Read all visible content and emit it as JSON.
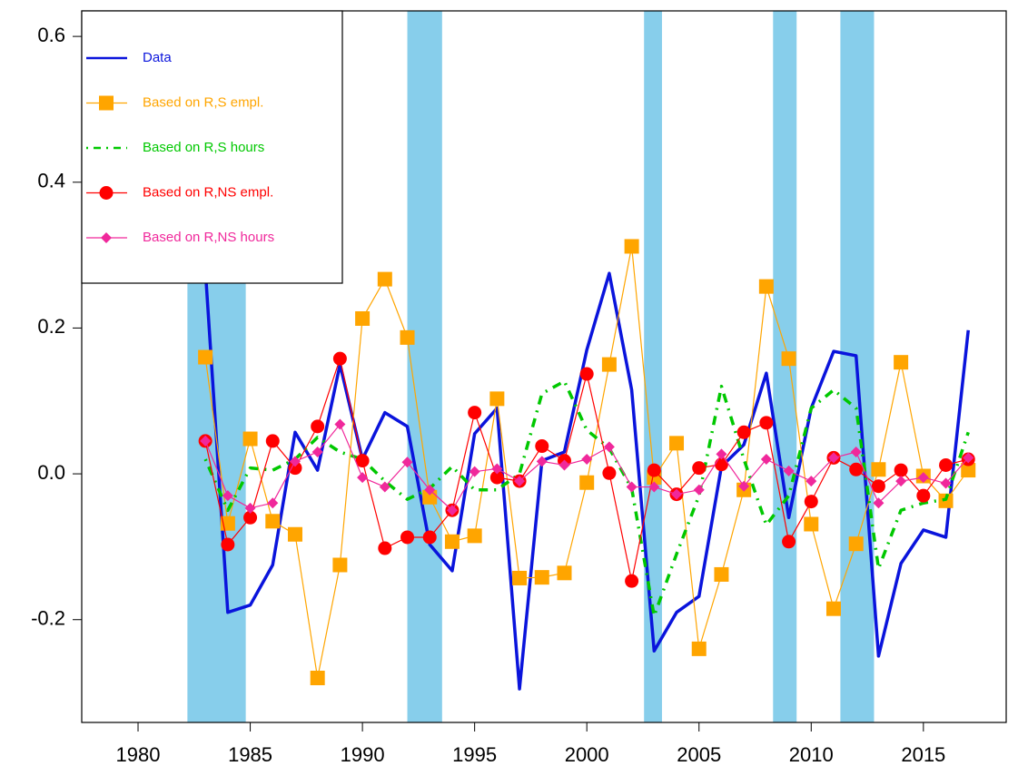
{
  "chart_data": {
    "type": "line",
    "x": [
      1983,
      1984,
      1985,
      1986,
      1987,
      1988,
      1989,
      1990,
      1991,
      1992,
      1993,
      1994,
      1995,
      1996,
      1997,
      1998,
      1999,
      2000,
      2001,
      2002,
      2003,
      2004,
      2005,
      2006,
      2007,
      2008,
      2009,
      2010,
      2011,
      2012,
      2013,
      2014,
      2015,
      2016,
      2017
    ],
    "series": [
      {
        "name": "Data",
        "color": "#0a14dc",
        "width": 3.5,
        "dash": "solid",
        "marker": "none",
        "values": [
          0.28,
          -0.19,
          -0.18,
          -0.125,
          0.057,
          0.005,
          0.15,
          0.02,
          0.084,
          0.065,
          -0.097,
          -0.133,
          0.055,
          0.09,
          -0.295,
          0.018,
          0.03,
          0.17,
          0.275,
          0.115,
          -0.243,
          -0.19,
          -0.168,
          0.01,
          0.04,
          0.138,
          -0.06,
          0.09,
          0.168,
          0.162,
          -0.25,
          -0.123,
          -0.077,
          -0.087,
          0.197
        ]
      },
      {
        "name": "Based on R,S empl.",
        "color": "#ffa500",
        "width": 1.2,
        "dash": "solid",
        "marker": "square",
        "values": [
          0.16,
          -0.068,
          0.048,
          -0.065,
          -0.083,
          -0.28,
          -0.125,
          0.213,
          0.267,
          0.187,
          -0.032,
          -0.093,
          -0.085,
          0.103,
          -0.143,
          -0.142,
          -0.136,
          -0.012,
          0.15,
          0.312,
          -0.005,
          0.042,
          -0.24,
          -0.138,
          -0.022,
          0.257,
          0.158,
          -0.069,
          -0.185,
          -0.096,
          0.006,
          0.153,
          -0.003,
          -0.037,
          0.005
        ]
      },
      {
        "name": "Based on R,S hours",
        "color": "#00c800",
        "width": 3.5,
        "dash": "dot-dash",
        "marker": "none",
        "values": [
          0.02,
          -0.05,
          0.008,
          0.005,
          0.02,
          0.05,
          0.03,
          0.02,
          -0.01,
          -0.035,
          -0.02,
          0.01,
          -0.022,
          -0.022,
          0.0,
          0.11,
          0.127,
          0.06,
          0.035,
          -0.02,
          -0.195,
          -0.11,
          -0.03,
          0.12,
          0.02,
          -0.07,
          -0.03,
          0.09,
          0.115,
          0.09,
          -0.13,
          -0.05,
          -0.04,
          -0.035,
          0.057
        ]
      },
      {
        "name": "Based on R,NS empl.",
        "color": "#ff0000",
        "width": 1.2,
        "dash": "solid",
        "marker": "circle",
        "values": [
          0.045,
          -0.097,
          -0.06,
          0.045,
          0.008,
          0.065,
          0.158,
          0.018,
          -0.102,
          -0.087,
          -0.087,
          -0.05,
          0.084,
          -0.005,
          -0.01,
          0.038,
          0.018,
          0.137,
          0.001,
          -0.147,
          0.005,
          -0.028,
          0.008,
          0.013,
          0.057,
          0.07,
          -0.093,
          -0.038,
          0.022,
          0.006,
          -0.017,
          0.005,
          -0.03,
          0.012,
          0.02
        ]
      },
      {
        "name": "Based on R,NS hours",
        "color": "#f0289b",
        "width": 1.2,
        "dash": "solid",
        "marker": "diamond",
        "values": [
          0.045,
          -0.03,
          -0.047,
          -0.04,
          0.017,
          0.03,
          0.068,
          -0.005,
          -0.018,
          0.016,
          -0.022,
          -0.05,
          0.003,
          0.007,
          -0.01,
          0.017,
          0.012,
          0.02,
          0.037,
          -0.018,
          -0.018,
          -0.028,
          -0.022,
          0.027,
          -0.017,
          0.02,
          0.004,
          -0.01,
          0.022,
          0.03,
          -0.04,
          -0.01,
          -0.005,
          -0.013,
          0.022
        ]
      }
    ],
    "recessions": [
      [
        1982.2,
        1984.8
      ],
      [
        1992.0,
        1993.55
      ],
      [
        2002.55,
        2003.35
      ],
      [
        2008.3,
        2009.35
      ],
      [
        2011.3,
        2012.8
      ]
    ],
    "recession_color": "#87ceeb",
    "xlim": [
      1977.49,
      2018.69
    ],
    "xticks": [
      1980,
      1985,
      1990,
      1995,
      2000,
      2005,
      2010,
      2015
    ],
    "ylim": [
      -0.341,
      0.635
    ],
    "yticks": [
      {
        "value": -0.2,
        "label": "-0.2"
      },
      {
        "value": 0,
        "label": "0.0"
      },
      0.2,
      0.4,
      0.6
    ],
    "legend": "top-left",
    "grid": false
  }
}
